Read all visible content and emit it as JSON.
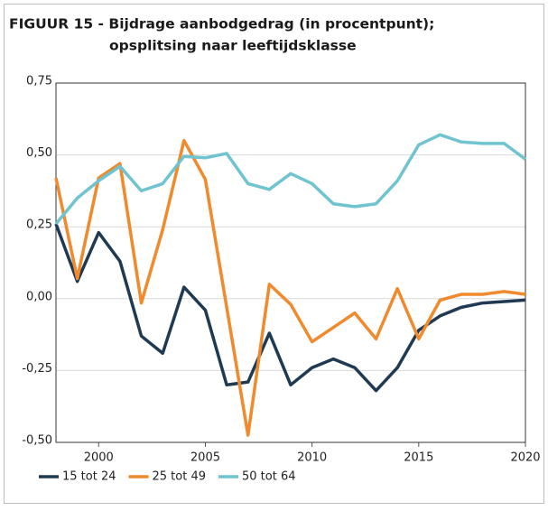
{
  "chart_data": {
    "type": "line",
    "title": [
      "FIGUUR 15 - Bijdrage aanbodgedrag (in procentpunt);",
      "opsplitsing naar leeftijdsklasse"
    ],
    "x": [
      1998,
      1999,
      2000,
      2001,
      2002,
      2003,
      2004,
      2005,
      2006,
      2007,
      2008,
      2009,
      2010,
      2011,
      2012,
      2013,
      2014,
      2015,
      2016,
      2017,
      2018,
      2019,
      2020
    ],
    "xlim": [
      1998,
      2020
    ],
    "xticks": [
      2000,
      2005,
      2010,
      2015,
      2020
    ],
    "ylim": [
      -0.5,
      0.75
    ],
    "yticks": [
      {
        "value": -0.5,
        "label": "-0,50"
      },
      {
        "value": -0.25,
        "label": "-0,25"
      },
      {
        "value": 0,
        "label": "0,00"
      },
      {
        "value": 0.25,
        "label": "0,25"
      },
      {
        "value": 0.5,
        "label": "0,50"
      },
      {
        "value": 0.75,
        "label": "0,75"
      }
    ],
    "grid": true,
    "legend": "bottom",
    "series": [
      {
        "name": "15 tot 24",
        "color": "#1f3a52",
        "values": [
          0.26,
          0.06,
          0.23,
          0.13,
          -0.13,
          -0.19,
          0.04,
          -0.04,
          -0.3,
          -0.29,
          -0.12,
          -0.3,
          -0.24,
          -0.21,
          -0.24,
          -0.32,
          -0.24,
          -0.11,
          -0.06,
          -0.03,
          -0.015,
          -0.01,
          -0.005
        ]
      },
      {
        "name": "25 tot 49",
        "color": "#f08a2c",
        "values": [
          0.42,
          0.07,
          0.42,
          0.47,
          -0.015,
          0.24,
          0.55,
          0.415,
          -0.03,
          -0.475,
          0.05,
          -0.02,
          -0.15,
          -0.1,
          -0.05,
          -0.14,
          0.035,
          -0.14,
          -0.005,
          0.015,
          0.015,
          0.025,
          0.015
        ]
      },
      {
        "name": "50 tot 64",
        "color": "#6fc4cf",
        "values": [
          0.26,
          0.35,
          0.41,
          0.46,
          0.375,
          0.4,
          0.495,
          0.49,
          0.505,
          0.4,
          0.38,
          0.435,
          0.4,
          0.33,
          0.32,
          0.33,
          0.41,
          0.535,
          0.57,
          0.545,
          0.54,
          0.54,
          0.485
        ]
      }
    ]
  }
}
